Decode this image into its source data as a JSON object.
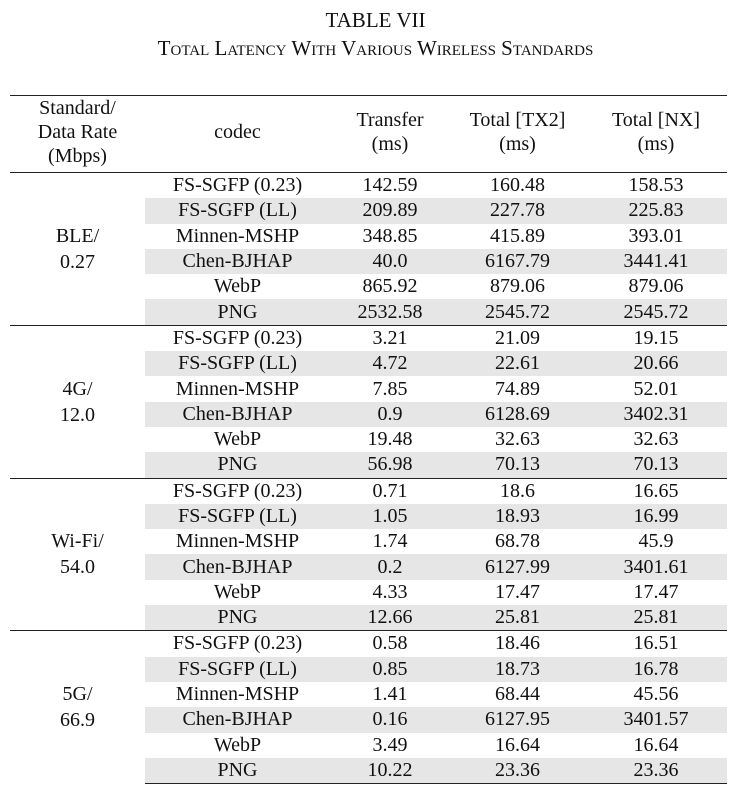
{
  "caption": {
    "label": "TABLE VII",
    "title": "Total Latency With Various Wireless Standards"
  },
  "table": {
    "header": [
      "Standard/\nData Rate\n(Mbps)",
      "codec",
      "Transfer\n(ms)",
      "Total [TX2]\n(ms)",
      "Total [NX]\n(ms)"
    ],
    "groups": [
      {
        "standard": "BLE/\n0.27",
        "rows": [
          [
            "FS-SGFP (0.23)",
            "142.59",
            "160.48",
            "158.53"
          ],
          [
            "FS-SGFP (LL)",
            "209.89",
            "227.78",
            "225.83"
          ],
          [
            "Minnen-MSHP",
            "348.85",
            "415.89",
            "393.01"
          ],
          [
            "Chen-BJHAP",
            "40.0",
            "6167.79",
            "3441.41"
          ],
          [
            "WebP",
            "865.92",
            "879.06",
            "879.06"
          ],
          [
            "PNG",
            "2532.58",
            "2545.72",
            "2545.72"
          ]
        ]
      },
      {
        "standard": "4G/\n12.0",
        "rows": [
          [
            "FS-SGFP (0.23)",
            "3.21",
            "21.09",
            "19.15"
          ],
          [
            "FS-SGFP (LL)",
            "4.72",
            "22.61",
            "20.66"
          ],
          [
            "Minnen-MSHP",
            "7.85",
            "74.89",
            "52.01"
          ],
          [
            "Chen-BJHAP",
            "0.9",
            "6128.69",
            "3402.31"
          ],
          [
            "WebP",
            "19.48",
            "32.63",
            "32.63"
          ],
          [
            "PNG",
            "56.98",
            "70.13",
            "70.13"
          ]
        ]
      },
      {
        "standard": "Wi-Fi/\n54.0",
        "rows": [
          [
            "FS-SGFP (0.23)",
            "0.71",
            "18.6",
            "16.65"
          ],
          [
            "FS-SGFP (LL)",
            "1.05",
            "18.93",
            "16.99"
          ],
          [
            "Minnen-MSHP",
            "1.74",
            "68.78",
            "45.9"
          ],
          [
            "Chen-BJHAP",
            "0.2",
            "6127.99",
            "3401.61"
          ],
          [
            "WebP",
            "4.33",
            "17.47",
            "17.47"
          ],
          [
            "PNG",
            "12.66",
            "25.81",
            "25.81"
          ]
        ]
      },
      {
        "standard": "5G/\n66.9",
        "rows": [
          [
            "FS-SGFP (0.23)",
            "0.58",
            "18.46",
            "16.51"
          ],
          [
            "FS-SGFP (LL)",
            "0.85",
            "18.73",
            "16.78"
          ],
          [
            "Minnen-MSHP",
            "1.41",
            "68.44",
            "45.56"
          ],
          [
            "Chen-BJHAP",
            "0.16",
            "6127.95",
            "3401.57"
          ],
          [
            "WebP",
            "3.49",
            "16.64",
            "16.64"
          ],
          [
            "PNG",
            "10.22",
            "23.36",
            "23.36"
          ]
        ]
      }
    ]
  }
}
